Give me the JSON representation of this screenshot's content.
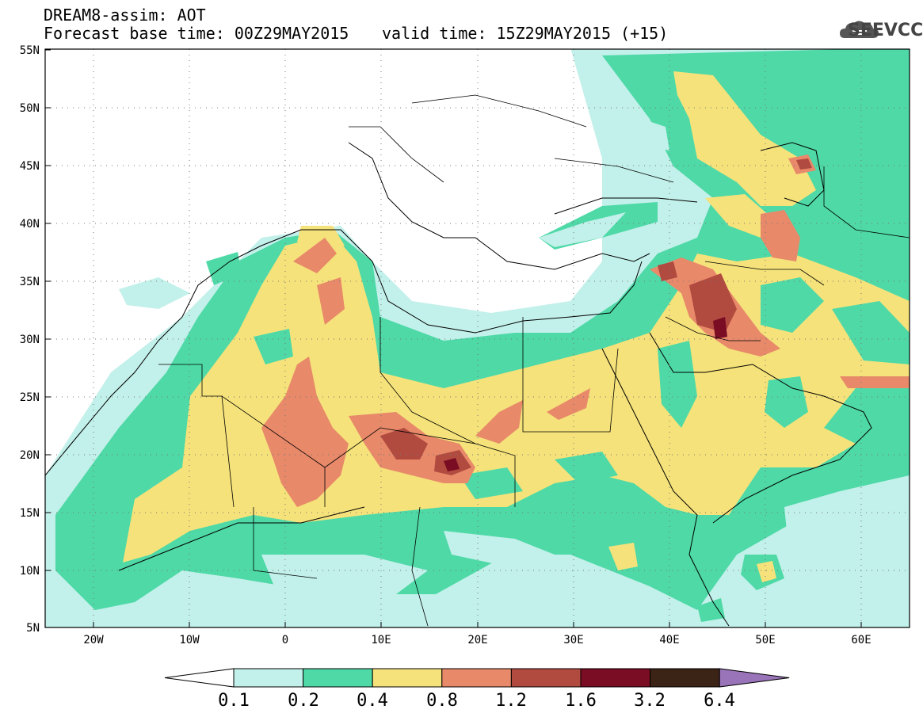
{
  "header": {
    "model_line": "DREAM8-assim: AOT",
    "base_time_line": "Forecast base time: 00Z29MAY2015",
    "valid_time_line": "valid time: 15Z29MAY2015 (+15)",
    "logo_text": "SEEVCCC"
  },
  "map": {
    "lon_range": [
      -25,
      65
    ],
    "lat_range": [
      5,
      55
    ],
    "lat_ticks": [
      "55N",
      "50N",
      "45N",
      "40N",
      "35N",
      "30N",
      "25N",
      "20N",
      "15N",
      "10N",
      "5N"
    ],
    "lon_ticks": [
      "20W",
      "10W",
      "0",
      "10E",
      "20E",
      "30E",
      "40E",
      "50E",
      "60E"
    ],
    "grid": "dotted"
  },
  "legend": {
    "thresholds": [
      "0.1",
      "0.2",
      "0.4",
      "0.8",
      "1.2",
      "1.6",
      "3.2",
      "6.4"
    ],
    "colors": [
      "#ffffff",
      "#c2f0ea",
      "#4ed9a7",
      "#f5e27a",
      "#e8896a",
      "#b14a3f",
      "#7a0c23",
      "#3b2315",
      "#9a74b8"
    ]
  }
}
